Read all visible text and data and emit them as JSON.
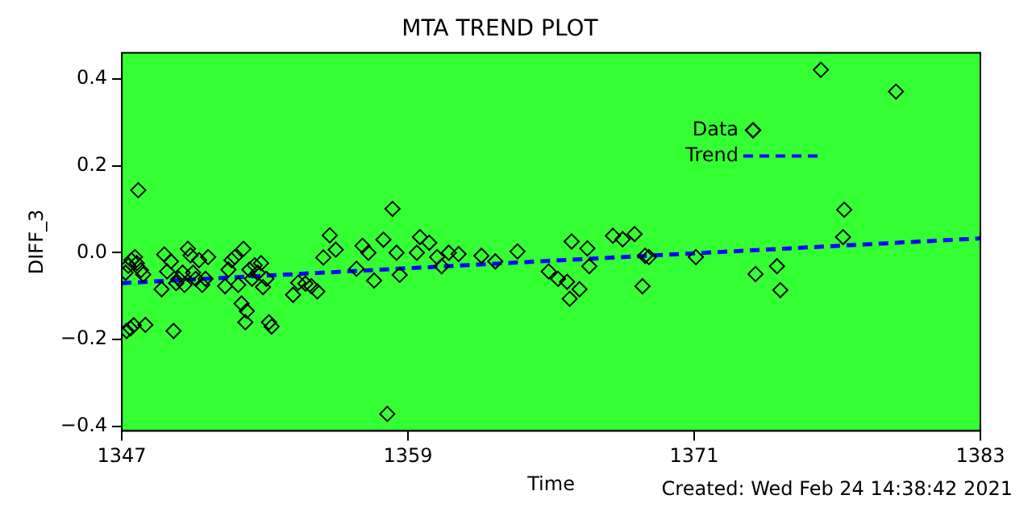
{
  "chart_data": {
    "type": "scatter",
    "title": "MTA TREND PLOT",
    "xlabel": "Time",
    "ylabel": "DIFF_3",
    "xlim": [
      1347,
      1383
    ],
    "xticks": [
      1347,
      1359,
      1371,
      1383
    ],
    "ylim": [
      -0.41,
      0.46
    ],
    "yticks": [
      {
        "value": -0.4,
        "label": "−0.4"
      },
      {
        "value": -0.2,
        "label": "−0.2"
      },
      {
        "value": 0,
        "label": "0.0"
      },
      {
        "value": 0.2,
        "label": "0.2"
      },
      {
        "value": 0.4,
        "label": "0.4"
      }
    ],
    "legend": "top right",
    "annotations": [
      "Created: Wed Feb 24 14:38:42 2021"
    ],
    "series": [
      {
        "name": "Data",
        "marker": "diamond",
        "color": "#000000",
        "x": [
          1347.16,
          1347.27,
          1347.4,
          1347.55,
          1347.69,
          1347.63,
          1347.8,
          1347.9,
          1347.36,
          1347.5,
          1347.2,
          1347.99,
          1348.78,
          1348.67,
          1348.9,
          1349.06,
          1349.17,
          1349.28,
          1349.4,
          1349.55,
          1349.63,
          1349.77,
          1349.88,
          1349.99,
          1350.1,
          1350.24,
          1350.37,
          1350.51,
          1350.62,
          1351.33,
          1351.47,
          1351.6,
          1351.74,
          1351.88,
          1352.02,
          1352.1,
          1352.18,
          1352.24,
          1352.35,
          1352.46,
          1352.57,
          1352.7,
          1352.84,
          1352.92,
          1353.06,
          1353.17,
          1353.28,
          1354.18,
          1354.4,
          1354.7,
          1354.95,
          1355.2,
          1355.45,
          1355.72,
          1355.97,
          1356.84,
          1357.09,
          1357.34,
          1357.58,
          1357.97,
          1358.13,
          1358.35,
          1358.52,
          1358.65,
          1359.37,
          1359.5,
          1359.89,
          1360.22,
          1360.41,
          1360.71,
          1361.12,
          1362.08,
          1362.66,
          1363.59,
          1364.9,
          1365.29,
          1365.67,
          1365.78,
          1365.86,
          1366.19,
          1366.52,
          1366.6,
          1367.59,
          1368.0,
          1368.5,
          1368.83,
          1368.94,
          1369.1,
          1371.07,
          1373.57,
          1374.47,
          1374.61,
          1376.31,
          1377.24,
          1377.29,
          1379.46
        ],
        "values": [
          -0.046,
          -0.03,
          -0.017,
          -0.01,
          0.144,
          -0.024,
          -0.04,
          -0.05,
          -0.174,
          -0.167,
          -0.18,
          -0.166,
          -0.004,
          -0.084,
          -0.043,
          -0.02,
          -0.18,
          -0.07,
          -0.06,
          -0.046,
          -0.074,
          0.009,
          -0.006,
          -0.046,
          -0.06,
          -0.017,
          -0.074,
          -0.06,
          -0.01,
          -0.077,
          -0.039,
          -0.017,
          -0.01,
          -0.074,
          -0.117,
          0.009,
          -0.16,
          -0.134,
          -0.039,
          -0.06,
          -0.029,
          -0.046,
          -0.024,
          -0.079,
          -0.06,
          -0.16,
          -0.17,
          -0.097,
          -0.069,
          -0.071,
          -0.077,
          -0.089,
          -0.011,
          0.04,
          0.007,
          -0.037,
          0.016,
          0,
          -0.064,
          0.03,
          -0.371,
          0.101,
          0,
          -0.051,
          0,
          0.036,
          0.023,
          -0.01,
          -0.031,
          0,
          -0.003,
          -0.007,
          -0.02,
          0.003,
          -0.043,
          -0.06,
          -0.067,
          -0.106,
          0.026,
          -0.084,
          0.01,
          -0.031,
          0.039,
          0.031,
          0.043,
          -0.077,
          -0.007,
          -0.01,
          -0.01,
          -0.049,
          -0.031,
          -0.086,
          0.421,
          0.036,
          0.099,
          0.371
        ]
      },
      {
        "name": "Trend",
        "type": "line",
        "marker": "none",
        "line_style": "dashed",
        "color": "#0000ff",
        "x": [
          1347,
          1383
        ],
        "values": [
          -0.07,
          0.033
        ]
      }
    ]
  }
}
